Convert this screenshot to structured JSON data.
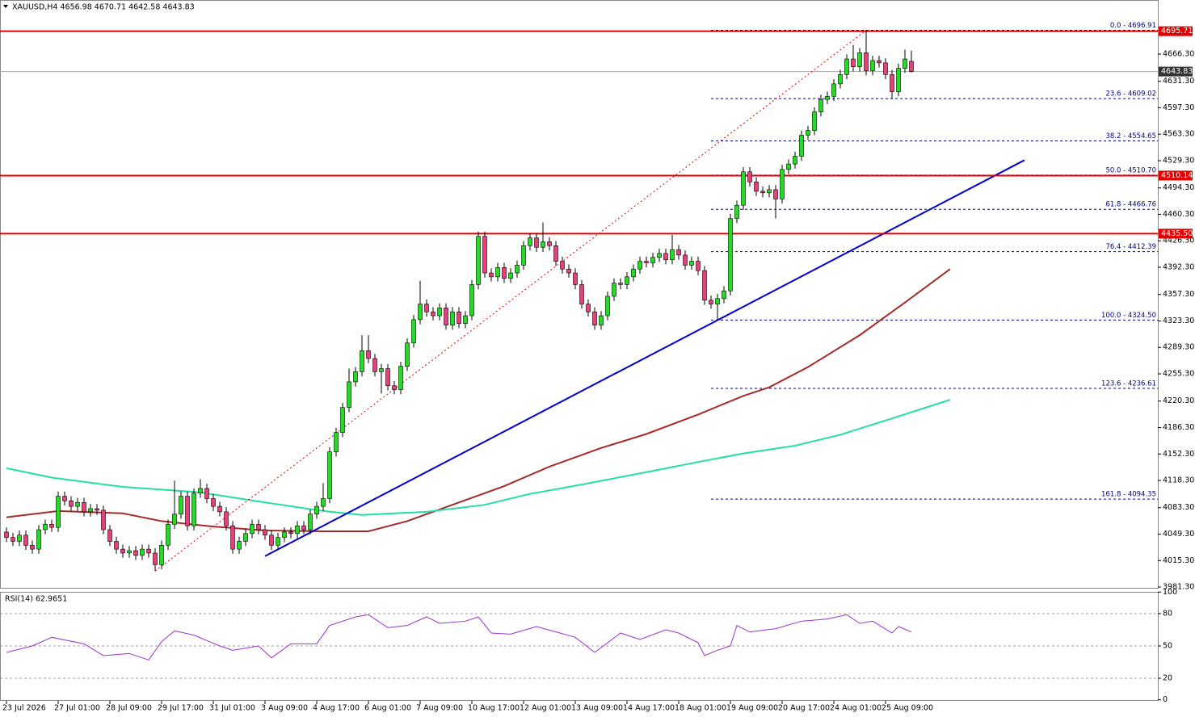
{
  "chart_data": [
    {
      "type": "candlestick",
      "title": "XAUUSD,H4  4656.98 4670.71 4642.58 4643.83",
      "categories": [
        "23 Jul 2026",
        null,
        null,
        null,
        null,
        null,
        null,
        null,
        "27 Jul 01:00",
        null,
        null,
        null,
        null,
        null,
        null,
        null,
        "28 Jul 09:00",
        null,
        null,
        null,
        null,
        null,
        null,
        null,
        "29 Jul 17:00",
        null,
        null,
        null,
        null,
        null,
        null,
        null,
        "31 Jul 01:00",
        null,
        null,
        null,
        null,
        null,
        null,
        null,
        "3 Aug 09:00",
        null,
        null,
        null,
        null,
        null,
        null,
        null,
        "4 Aug 17:00",
        null,
        null,
        null,
        null,
        null,
        null,
        null,
        "6 Aug 01:00",
        null,
        null,
        null,
        null,
        null,
        null,
        null,
        "7 Aug 09:00",
        null,
        null,
        null,
        null,
        null,
        null,
        null,
        "10 Aug 17:00",
        null,
        null,
        null,
        null,
        null,
        null,
        null,
        "12 Aug 01:00",
        null,
        null,
        null,
        null,
        null,
        null,
        null,
        "13 Aug 09:00",
        null,
        null,
        null,
        null,
        null,
        null,
        null,
        "14 Aug 17:00",
        null,
        null,
        null,
        null,
        null,
        null,
        null,
        "18 Aug 01:00",
        null,
        null,
        null,
        null,
        null,
        null,
        null,
        "19 Aug 09:00",
        null,
        null,
        null,
        null,
        null,
        null,
        null,
        "20 Aug 17:00",
        null,
        null,
        null,
        null,
        null,
        null,
        null,
        "24 Aug 01:00",
        null,
        null,
        null,
        null,
        null,
        null,
        null,
        "25 Aug 09:00",
        null,
        null,
        null,
        null
      ],
      "open": [
        4052,
        4045,
        4040,
        4048,
        4035,
        4030,
        4055,
        4062,
        4058,
        4098,
        4092,
        4085,
        4090,
        4078,
        4082,
        4080,
        4055,
        4040,
        4030,
        4025,
        4028,
        4022,
        4030,
        4025,
        4010,
        4035,
        4062,
        4075,
        4098,
        4060,
        4102,
        4108,
        4095,
        4085,
        4078,
        4060,
        4030,
        4040,
        4050,
        4062,
        4055,
        4048,
        4035,
        4045,
        4052,
        4050,
        4060,
        4055,
        4075,
        4085,
        4095,
        4155,
        4180,
        4212,
        4245,
        4258,
        4285,
        4275,
        4258,
        4262,
        4240,
        4235,
        4265,
        4295,
        4325,
        4345,
        4335,
        4330,
        4340,
        4318,
        4335,
        4320,
        4330,
        4370,
        4432,
        4385,
        4380,
        4392,
        4378,
        4385,
        4395,
        4420,
        4430,
        4418,
        4425,
        4420,
        4400,
        4390,
        4385,
        4370,
        4345,
        4335,
        4318,
        4330,
        4355,
        4372,
        4370,
        4380,
        4390,
        4400,
        4398,
        4405,
        4410,
        4402,
        4415,
        4408,
        4395,
        4400,
        4388,
        4350,
        4345,
        4352,
        4362,
        4455,
        4472,
        4515,
        4502,
        4490,
        4488,
        4492,
        4480,
        4518,
        4525,
        4535,
        4562,
        4568,
        4592,
        4608,
        4612,
        4628,
        4640,
        4660,
        4650,
        4668,
        4645,
        4658,
        4655,
        4640,
        4618,
        4648,
        4656.98
      ],
      "high": [
        4058,
        4051,
        4054,
        4054,
        4041,
        4061,
        4068,
        4068,
        4104,
        4104,
        4098,
        4096,
        4096,
        4088,
        4088,
        4086,
        4061,
        4046,
        4036,
        4034,
        4034,
        4036,
        4036,
        4031,
        4041,
        4068,
        4118,
        4104,
        4104,
        4108,
        4120,
        4114,
        4101,
        4091,
        4084,
        4066,
        4046,
        4056,
        4068,
        4068,
        4061,
        4054,
        4051,
        4058,
        4058,
        4066,
        4066,
        4081,
        4091,
        4115,
        4161,
        4186,
        4218,
        4262,
        4264,
        4305,
        4305,
        4281,
        4268,
        4268,
        4246,
        4271,
        4301,
        4331,
        4375,
        4351,
        4341,
        4346,
        4346,
        4341,
        4341,
        4336,
        4376,
        4438,
        4438,
        4391,
        4398,
        4398,
        4391,
        4401,
        4426,
        4436,
        4436,
        4450,
        4431,
        4426,
        4406,
        4396,
        4391,
        4376,
        4351,
        4341,
        4336,
        4361,
        4378,
        4378,
        4386,
        4396,
        4406,
        4406,
        4411,
        4416,
        4416,
        4434,
        4421,
        4414,
        4406,
        4406,
        4394,
        4356,
        4358,
        4368,
        4461,
        4478,
        4521,
        4521,
        4508,
        4496,
        4498,
        4498,
        4524,
        4531,
        4541,
        4568,
        4574,
        4598,
        4614,
        4618,
        4634,
        4646,
        4666,
        4678,
        4674,
        4696.91,
        4664,
        4664,
        4661,
        4646,
        4654,
        4672,
        4670.71
      ],
      "low": [
        4039,
        4034,
        4034,
        4029,
        4024,
        4024,
        4049,
        4052,
        4052,
        4086,
        4079,
        4079,
        4072,
        4072,
        4074,
        4049,
        4034,
        4024,
        4019,
        4019,
        4016,
        4016,
        4019,
        4002,
        4004,
        4029,
        4056,
        4069,
        4054,
        4054,
        4096,
        4089,
        4079,
        4072,
        4054,
        4024,
        4024,
        4034,
        4044,
        4049,
        4042,
        4029,
        4029,
        4039,
        4044,
        4044,
        4049,
        4049,
        4069,
        4079,
        4089,
        4149,
        4174,
        4206,
        4239,
        4252,
        4269,
        4252,
        4230,
        4234,
        4229,
        4229,
        4259,
        4289,
        4319,
        4329,
        4324,
        4324,
        4312,
        4312,
        4314,
        4314,
        4324,
        4364,
        4379,
        4374,
        4374,
        4372,
        4372,
        4379,
        4389,
        4414,
        4412,
        4412,
        4414,
        4394,
        4384,
        4379,
        4364,
        4339,
        4329,
        4312,
        4312,
        4324,
        4349,
        4364,
        4364,
        4374,
        4384,
        4392,
        4392,
        4399,
        4396,
        4396,
        4402,
        4389,
        4389,
        4382,
        4344,
        4339,
        4324.5,
        4346,
        4356,
        4449,
        4466,
        4496,
        4484,
        4482,
        4482,
        4455,
        4474,
        4512,
        4519,
        4529,
        4556,
        4562,
        4586,
        4602,
        4606,
        4622,
        4634,
        4644,
        4644,
        4639,
        4639,
        4649,
        4634,
        4609,
        4612,
        4642,
        4642.58
      ],
      "close": [
        4045,
        4040,
        4048,
        4035,
        4030,
        4055,
        4062,
        4058,
        4098,
        4092,
        4085,
        4090,
        4078,
        4082,
        4080,
        4055,
        4040,
        4030,
        4025,
        4028,
        4022,
        4030,
        4025,
        4010,
        4035,
        4062,
        4075,
        4098,
        4060,
        4102,
        4108,
        4095,
        4085,
        4078,
        4060,
        4030,
        4040,
        4050,
        4062,
        4055,
        4048,
        4035,
        4045,
        4052,
        4050,
        4060,
        4055,
        4075,
        4085,
        4095,
        4155,
        4180,
        4212,
        4245,
        4258,
        4285,
        4275,
        4258,
        4262,
        4240,
        4235,
        4265,
        4295,
        4325,
        4345,
        4335,
        4330,
        4340,
        4318,
        4335,
        4320,
        4330,
        4370,
        4432,
        4385,
        4380,
        4392,
        4378,
        4385,
        4395,
        4420,
        4430,
        4418,
        4425,
        4420,
        4400,
        4390,
        4385,
        4370,
        4345,
        4335,
        4318,
        4330,
        4355,
        4372,
        4370,
        4380,
        4390,
        4400,
        4398,
        4405,
        4410,
        4402,
        4415,
        4408,
        4395,
        4400,
        4388,
        4350,
        4345,
        4352,
        4362,
        4455,
        4472,
        4515,
        4502,
        4490,
        4488,
        4492,
        4480,
        4518,
        4525,
        4535,
        4562,
        4568,
        4592,
        4608,
        4612,
        4628,
        4640,
        4660,
        4650,
        4668,
        4645,
        4658,
        4655,
        4640,
        4618,
        4648,
        4660,
        4643.83
      ],
      "up_color": "#22dd22",
      "down_color": "#e8407a",
      "series": [
        {
          "color": "#a52a2a",
          "x": [
            0,
            8,
            18,
            24,
            32,
            40,
            49,
            56,
            62,
            69,
            77,
            84,
            92,
            99,
            107,
            114,
            118,
            124,
            132,
            139,
            146
          ],
          "values": [
            4071,
            4079,
            4076,
            4066,
            4059,
            4054,
            4053,
            4053,
            4066,
            4087,
            4111,
            4136,
            4160,
            4178,
            4203,
            4227,
            4238,
            4264,
            4305,
            4347,
            4390
          ]
        },
        {
          "color": "#22e0a0",
          "x": [
            0,
            7,
            18,
            30,
            40,
            49,
            55,
            65,
            74,
            81,
            89,
            99,
            107,
            114,
            122,
            129,
            137,
            146
          ],
          "values": [
            4134,
            4122,
            4110,
            4103,
            4090,
            4079,
            4074,
            4078,
            4087,
            4101,
            4113,
            4129,
            4142,
            4153,
            4163,
            4177,
            4198,
            4222
          ]
        }
      ],
      "trendline": {
        "color": "#0000cc",
        "x": [
          40,
          157.5
        ],
        "y": [
          4021,
          4530
        ]
      },
      "hlines": [
        {
          "value": 4695.71,
          "label": "4695.71"
        },
        {
          "value": 4510.14,
          "label": "4510.14"
        },
        {
          "value": 4435.5,
          "label": "4435.50"
        }
      ],
      "hline_color": "#e00000",
      "current_price": {
        "value": 4643.83,
        "label": "4643.83"
      },
      "fib_levels": [
        {
          "value": 4696.91,
          "label": "0.0 - 4696.91"
        },
        {
          "value": 4609.02,
          "label": "23.6 - 4609.02"
        },
        {
          "value": 4554.65,
          "label": "38.2 - 4554.65"
        },
        {
          "value": 4510.7,
          "label": "50.0 - 4510.70"
        },
        {
          "value": 4466.76,
          "label": "61.8 - 4466.76"
        },
        {
          "value": 4412.39,
          "label": "76.4 - 4412.39"
        },
        {
          "value": 4324.5,
          "label": "100.0 - 4324.50"
        },
        {
          "value": 4236.61,
          "label": "123.6 - 4236.61"
        },
        {
          "value": 4094.35,
          "label": "161.8 - 4094.35"
        }
      ],
      "fib_color": "#000080",
      "ylim": [
        3980.3,
        4735.8
      ],
      "yticks": [
        {
          "value": 3981.3,
          "label": "3981.30"
        },
        {
          "value": 4015.3,
          "label": "4015.30"
        },
        {
          "value": 4049.3,
          "label": "4049.30"
        },
        {
          "value": 4083.3,
          "label": "4083.30"
        },
        {
          "value": 4118.3,
          "label": "4118.30"
        },
        {
          "value": 4152.3,
          "label": "4152.30"
        },
        {
          "value": 4186.3,
          "label": "4186.30"
        },
        {
          "value": 4220.3,
          "label": "4220.30"
        },
        {
          "value": 4255.3,
          "label": "4255.30"
        },
        {
          "value": 4289.3,
          "label": "4289.30"
        },
        {
          "value": 4323.3,
          "label": "4323.30"
        },
        {
          "value": 4357.3,
          "label": "4357.30"
        },
        {
          "value": 4392.3,
          "label": "4392.30"
        },
        {
          "value": 4426.3,
          "label": "4426.30"
        },
        {
          "value": 4460.3,
          "label": "4460.30"
        },
        {
          "value": 4494.3,
          "label": "4494.30"
        },
        {
          "value": 4529.3,
          "label": "4529.30"
        },
        {
          "value": 4563.3,
          "label": "4563.30"
        },
        {
          "value": 4597.3,
          "label": "4597.30"
        },
        {
          "value": 4631.3,
          "label": "4631.30"
        },
        {
          "value": 4666.3,
          "label": "4666.30"
        }
      ]
    },
    {
      "type": "line",
      "title": "RSI(14) 62.9651",
      "x": [
        0,
        4,
        7,
        12,
        15,
        19,
        22,
        24,
        26,
        29,
        33,
        35,
        39,
        41,
        44,
        48,
        50,
        54,
        56,
        59,
        62,
        65,
        67,
        71,
        73,
        75,
        78,
        82,
        85,
        88,
        91,
        95,
        98,
        102,
        104,
        107,
        108,
        110,
        112,
        113,
        115,
        119,
        123,
        127,
        130,
        132,
        134,
        137,
        138,
        140
      ],
      "values": [
        44,
        50,
        58,
        52,
        41,
        43,
        37,
        54,
        64,
        60,
        50,
        46,
        50,
        39,
        52,
        52,
        69,
        77,
        79,
        67,
        69,
        77,
        71,
        73,
        77,
        62,
        61,
        68,
        63,
        58,
        44,
        62,
        56,
        65,
        62,
        53,
        41,
        46,
        50,
        69,
        63,
        66,
        73,
        75,
        79,
        71,
        73,
        62,
        68,
        62.9651
      ],
      "color": "#9932cc",
      "ylim": [
        0,
        100
      ],
      "yticks": [
        0,
        20,
        50,
        80,
        100
      ],
      "levels": [
        20,
        50,
        80
      ]
    }
  ]
}
